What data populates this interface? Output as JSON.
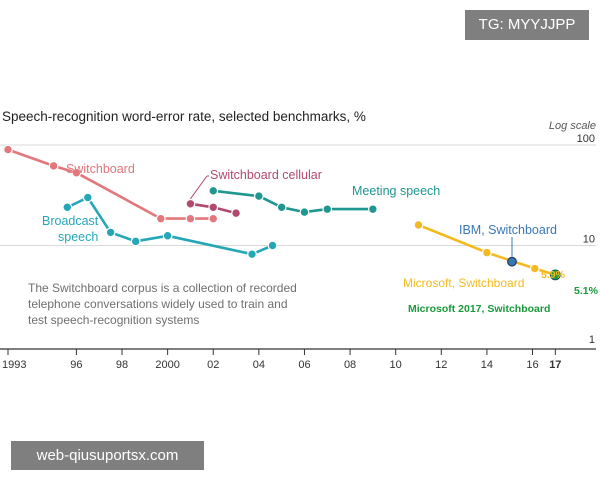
{
  "overlay": {
    "tag": "TG: MYYJJPP",
    "watermark": "web-qiusuportsx.com"
  },
  "chart_data": {
    "type": "line",
    "title": "Speech-recognition word-error rate, selected benchmarks, %",
    "scale_label": "Log scale",
    "y_scale": "log",
    "ylim": [
      1,
      100
    ],
    "y_ticks": [
      1,
      10,
      100
    ],
    "xlim": [
      1993,
      2017.6
    ],
    "x_ticks": [
      {
        "value": 1993,
        "label": "1993"
      },
      {
        "value": 1996,
        "label": "96"
      },
      {
        "value": 1998,
        "label": "98"
      },
      {
        "value": 2000,
        "label": "2000"
      },
      {
        "value": 2002,
        "label": "02"
      },
      {
        "value": 2004,
        "label": "04"
      },
      {
        "value": 2006,
        "label": "06"
      },
      {
        "value": 2008,
        "label": "08"
      },
      {
        "value": 2010,
        "label": "10"
      },
      {
        "value": 2012,
        "label": "12"
      },
      {
        "value": 2014,
        "label": "14"
      },
      {
        "value": 2016,
        "label": "16"
      },
      {
        "value": 2017,
        "label": "17"
      }
    ],
    "series": [
      {
        "name": "Switchboard",
        "color": "#e2777c",
        "points": [
          [
            1993,
            90
          ],
          [
            1995,
            62
          ],
          [
            1996,
            53
          ],
          [
            1999.7,
            18.5
          ],
          [
            2001,
            18.5
          ],
          [
            2002,
            18.5
          ]
        ]
      },
      {
        "name": "Switchboard cellular",
        "color": "#b24a6e",
        "points": [
          [
            2001,
            26
          ],
          [
            2002,
            24
          ],
          [
            2003,
            21
          ]
        ]
      },
      {
        "name": "Broadcast speech",
        "color": "#26a7b8",
        "points": [
          [
            1995.6,
            24
          ],
          [
            1996.5,
            30
          ],
          [
            1997.5,
            13.5
          ],
          [
            1998.6,
            11
          ],
          [
            2000,
            12.5
          ],
          [
            2003.7,
            8.2
          ],
          [
            2004.6,
            10
          ]
        ]
      },
      {
        "name": "Meeting speech",
        "color": "#1f9690",
        "points": [
          [
            2002,
            35
          ],
          [
            2004,
            31
          ],
          [
            2005,
            24
          ],
          [
            2006,
            21.5
          ],
          [
            2007,
            23
          ],
          [
            2009,
            23
          ]
        ]
      },
      {
        "name": "Microsoft, Switchboard",
        "color": "#f3ba20",
        "points": [
          [
            2011,
            16
          ],
          [
            2014,
            8.5
          ],
          [
            2016.1,
            5.9
          ],
          [
            2017,
            5.1
          ]
        ]
      },
      {
        "name": "IBM, Switchboard",
        "color": "#3a78b5",
        "points": [
          [
            2015.1,
            6.9
          ]
        ]
      },
      {
        "name": "Microsoft 2017, Switchboard",
        "color": "#1a9a3a",
        "points": [
          [
            2017,
            5.1
          ]
        ]
      }
    ],
    "series_labels": [
      {
        "series": "Switchboard",
        "text": "Switchboard"
      },
      {
        "series": "Switchboard cellular",
        "text": "Switchboard cellular"
      },
      {
        "series": "Meeting speech",
        "text": "Meeting speech"
      },
      {
        "series": "Broadcast speech",
        "text": "Broadcast"
      },
      {
        "series": "Broadcast speech",
        "text": "speech"
      },
      {
        "series": "IBM, Switchboard",
        "text": "IBM, Switchboard"
      },
      {
        "series": "Microsoft, Switchboard",
        "text": "Microsoft, Switchboard"
      },
      {
        "series": "Microsoft 2017, Switchboard",
        "text": "Microsoft 2017, Switchboard"
      }
    ],
    "data_labels": [
      {
        "text": "5.9%",
        "value": 5.9
      },
      {
        "text": "5.1%",
        "value": 5.1
      }
    ],
    "annotation": [
      "The Switchboard corpus is a collection of recorded",
      "telephone conversations widely used to train and",
      "test speech-recognition systems"
    ]
  }
}
